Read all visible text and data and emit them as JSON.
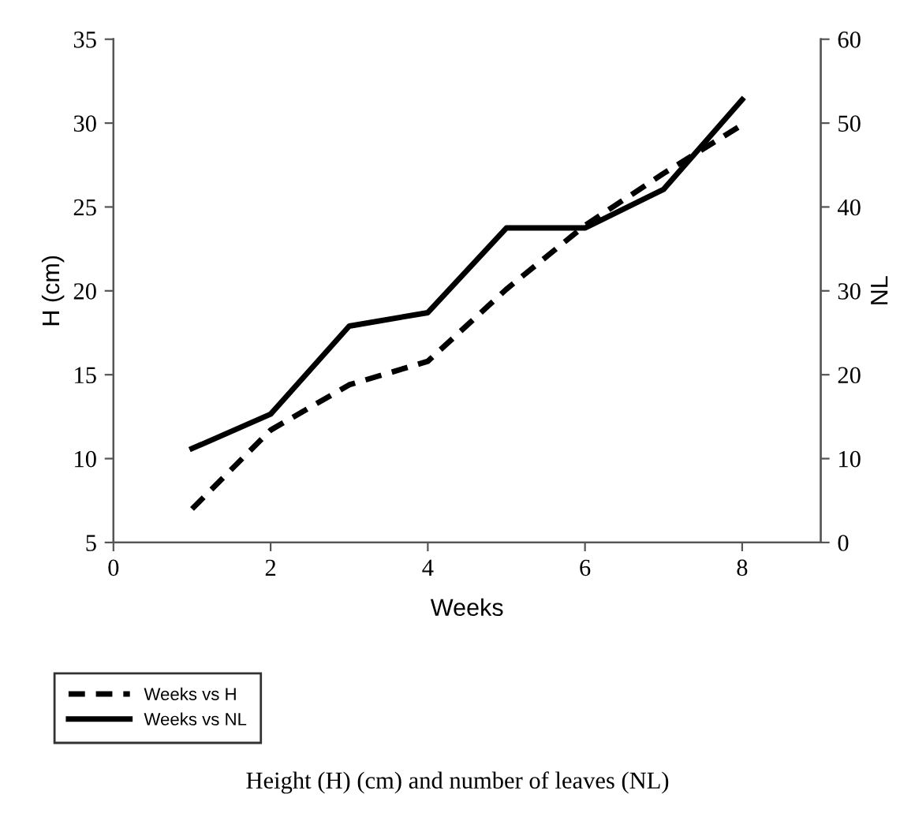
{
  "chart_data": {
    "type": "line",
    "title": "Height (H) (cm) and number of leaves (NL)",
    "xlabel": "Weeks",
    "ylabel": "H (cm)",
    "y2label": "NL",
    "x": [
      1,
      2,
      3,
      4,
      5,
      6,
      7,
      8
    ],
    "series": [
      {
        "name": "Weeks vs H",
        "color": "#000000",
        "line_style": "dashed",
        "values": [
          7.0,
          11.7,
          14.4,
          15.8,
          20.1,
          23.9,
          27.0,
          29.9
        ]
      },
      {
        "name": "Weeks vs NL",
        "color": "#000000",
        "line_style": "solid",
        "axis": "y2",
        "values": [
          11.2,
          15.3,
          25.8,
          27.4,
          37.5,
          37.5,
          42.1,
          52.8
        ]
      }
    ],
    "xlim": [
      0,
      9
    ],
    "xticks": [
      0,
      2,
      4,
      6,
      8
    ],
    "ylim": [
      5,
      35
    ],
    "yticks": [
      5,
      10,
      15,
      20,
      25,
      30,
      35
    ],
    "y2lim": [
      0,
      60
    ],
    "y2ticks": [
      0,
      10,
      20,
      30,
      40,
      50,
      60
    ],
    "grid": false,
    "legend": "bottom left",
    "marker": "none"
  }
}
